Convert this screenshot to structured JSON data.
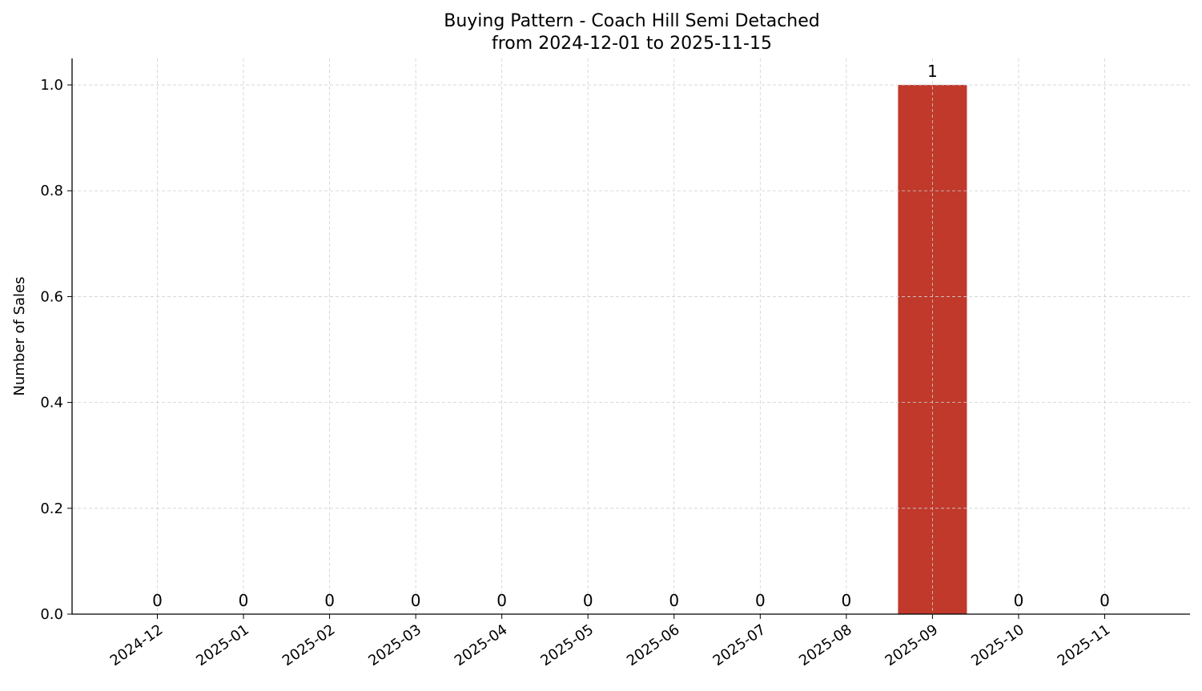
{
  "chart_data": {
    "type": "bar",
    "title": "Buying Pattern - Coach Hill Semi Detached",
    "subtitle": "from 2024-12-01 to 2025-11-15",
    "xlabel": "",
    "ylabel": "Number of Sales",
    "categories": [
      "2024-12",
      "2025-01",
      "2025-02",
      "2025-03",
      "2025-04",
      "2025-05",
      "2025-06",
      "2025-07",
      "2025-08",
      "2025-09",
      "2025-10",
      "2025-11"
    ],
    "values": [
      0,
      0,
      0,
      0,
      0,
      0,
      0,
      0,
      0,
      1,
      0,
      0
    ],
    "data_labels": [
      "0",
      "0",
      "0",
      "0",
      "0",
      "0",
      "0",
      "0",
      "0",
      "1",
      "0",
      "0"
    ],
    "ylim": [
      0,
      1.05
    ],
    "yticks": [
      0.0,
      0.2,
      0.4,
      0.6,
      0.8,
      1.0
    ],
    "ytick_labels": [
      "0.0",
      "0.2",
      "0.4",
      "0.6",
      "0.8",
      "1.0"
    ],
    "grid": true,
    "grid_style": "dashed",
    "bar_color": "#c0392b",
    "xtick_rotation_deg": 35
  }
}
